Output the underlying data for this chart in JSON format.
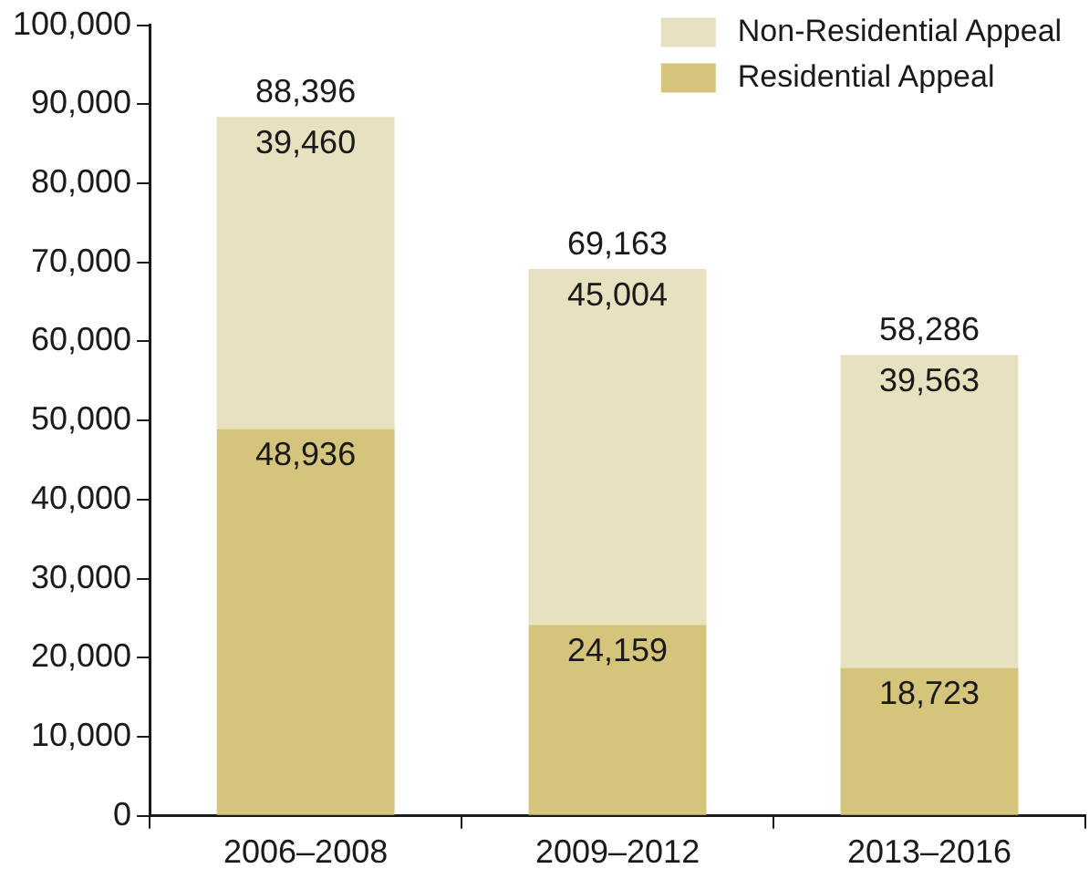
{
  "chart_data": {
    "type": "bar",
    "stacked": true,
    "categories": [
      "2006–2008",
      "2009–2012",
      "2013–2016"
    ],
    "series": [
      {
        "name": "Residential Appeal",
        "color": "#d4c47c",
        "values": [
          48936,
          24159,
          18723
        ],
        "value_labels": [
          "48,936",
          "24,159",
          "18,723"
        ]
      },
      {
        "name": "Non-Residential Appeal",
        "color": "#e8e1bf",
        "values": [
          39460,
          45004,
          39563
        ],
        "value_labels": [
          "39,460",
          "45,004",
          "39,563"
        ]
      }
    ],
    "ylim": [
      0,
      100000
    ],
    "yticks": [
      0,
      {
        "value": 10000,
        "label": "10,000"
      },
      {
        "value": 20000,
        "label": "20,000"
      },
      {
        "value": 30000,
        "label": "30,000"
      },
      {
        "value": 40000,
        "label": "40,000"
      },
      {
        "value": 50000,
        "label": "50,000"
      },
      {
        "value": 60000,
        "label": "60,000"
      },
      {
        "value": 70000,
        "label": "70,000"
      },
      {
        "value": 80000,
        "label": "80,000"
      },
      {
        "value": 90000,
        "label": "90,000"
      },
      {
        "value": 100000,
        "label": "100,000"
      }
    ],
    "totals": [
      "88,396",
      "69,163",
      "58,286"
    ],
    "legend": "top right",
    "grid": false
  }
}
